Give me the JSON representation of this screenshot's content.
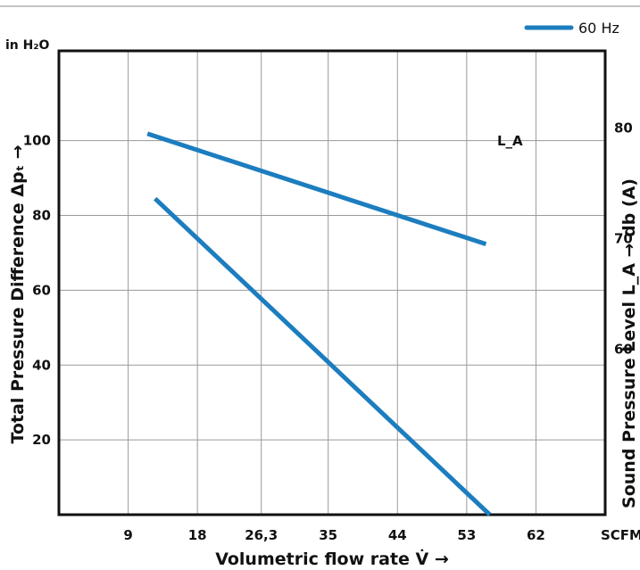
{
  "chart_data": {
    "type": "line",
    "x_label": "Volumetric flow rate V̇ →",
    "x_unit": "SCFM",
    "x_ticks": [
      "9",
      "18",
      "26,3",
      "35",
      "44",
      "53",
      "62"
    ],
    "y_label_left": "Total Pressure Difference Δpₜ →",
    "y_unit_left": "in H₂O",
    "y_ticks_left": [
      "20",
      "40",
      "60",
      "80",
      "100"
    ],
    "y_label_right": "Sound Pressure Level L_A → db (A)",
    "y_ticks_right": [
      "60",
      "70",
      "80"
    ],
    "legend": [
      {
        "label": "60 Hz",
        "color": "#1c7dbf"
      }
    ],
    "curve_label": "L_A",
    "series": [
      {
        "name": "60 Hz",
        "color": "#1c7dbf",
        "axis": "left",
        "points": [
          [
            12.5,
            84.5
          ],
          [
            56,
            0
          ]
        ]
      },
      {
        "name": "L_A",
        "color": "#1c7dbf",
        "axis": "right",
        "points": [
          [
            11.5,
            79.5
          ],
          [
            55.5,
            69.5
          ]
        ]
      }
    ],
    "x_range": [
      0,
      71
    ],
    "y_range_left": [
      0,
      124
    ],
    "y_range_right": [
      45,
      87
    ],
    "grid": true
  }
}
